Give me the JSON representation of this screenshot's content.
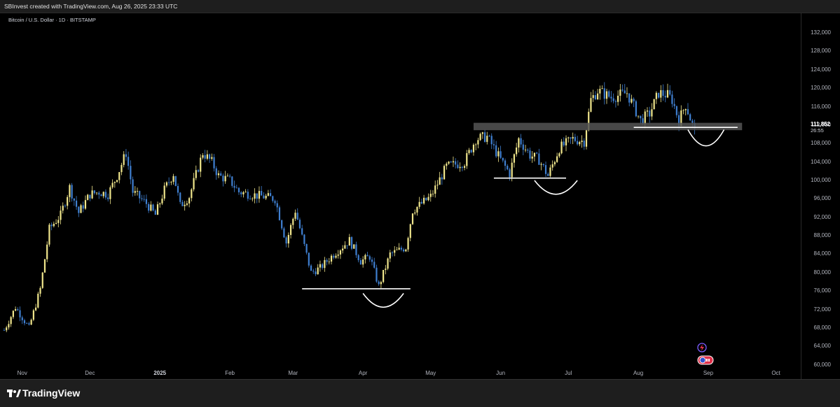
{
  "header": {
    "credit": "SBInvest created with TradingView.com, Aug 26, 2025 23:33 UTC"
  },
  "symbol_label": "Bitcoin / U.S. Dollar · 1D · BITSTAMP",
  "last_price": {
    "value": "111,852",
    "countdown": "26:55"
  },
  "footer": {
    "brand": "TradingView"
  },
  "colors": {
    "background": "#000000",
    "up_candle": "#f0e68c",
    "down_candle": "#3f7fd0",
    "annotation": "#ffffff",
    "resistance_band": "#555555"
  },
  "icons": [
    "lightning-alert-icon",
    "replay-toggle-icon"
  ],
  "chart_data": {
    "type": "candlestick",
    "title": "",
    "xlabel": "",
    "ylabel": "",
    "ylim": [
      59500,
      135500
    ],
    "y_ticks": [
      "60,000",
      "64,000",
      "68,000",
      "72,000",
      "76,000",
      "80,000",
      "84,000",
      "88,000",
      "92,000",
      "96,000",
      "100,000",
      "104,000",
      "108,000",
      "112,000",
      "116,000",
      "120,000",
      "124,000",
      "128,000",
      "132,000"
    ],
    "x_ticks": [
      {
        "label": "Nov",
        "date": "2024-11-01"
      },
      {
        "label": "Dec",
        "date": "2024-12-01"
      },
      {
        "label": "2025",
        "date": "2025-01-01",
        "bold": true
      },
      {
        "label": "Feb",
        "date": "2025-02-01"
      },
      {
        "label": "Mar",
        "date": "2025-03-01"
      },
      {
        "label": "Apr",
        "date": "2025-04-01"
      },
      {
        "label": "May",
        "date": "2025-05-01"
      },
      {
        "label": "Jun",
        "date": "2025-06-01"
      },
      {
        "label": "Jul",
        "date": "2025-07-01"
      },
      {
        "label": "Aug",
        "date": "2025-08-01"
      },
      {
        "label": "Sep",
        "date": "2025-09-01"
      },
      {
        "label": "Oct",
        "date": "2025-10-01"
      }
    ],
    "x_range": [
      "2024-10-24",
      "2025-10-12"
    ],
    "close_path": [
      [
        "2024-10-24",
        67500
      ],
      [
        "2024-10-29",
        72500
      ],
      [
        "2024-11-04",
        68000
      ],
      [
        "2024-11-09",
        76500
      ],
      [
        "2024-11-13",
        89500
      ],
      [
        "2024-11-18",
        92500
      ],
      [
        "2024-11-22",
        98500
      ],
      [
        "2024-11-26",
        93000
      ],
      [
        "2024-12-01",
        97000
      ],
      [
        "2024-12-05",
        97500
      ],
      [
        "2024-12-09",
        97000
      ],
      [
        "2024-12-13",
        101000
      ],
      [
        "2024-12-17",
        106000
      ],
      [
        "2024-12-20",
        97500
      ],
      [
        "2024-12-26",
        95000
      ],
      [
        "2024-12-30",
        92500
      ],
      [
        "2025-01-03",
        98000
      ],
      [
        "2025-01-07",
        101500
      ],
      [
        "2025-01-10",
        94500
      ],
      [
        "2025-01-14",
        96500
      ],
      [
        "2025-01-20",
        106000
      ],
      [
        "2025-01-24",
        104000
      ],
      [
        "2025-01-27",
        101000
      ],
      [
        "2025-02-01",
        100000
      ],
      [
        "2025-02-05",
        97500
      ],
      [
        "2025-02-10",
        97000
      ],
      [
        "2025-02-16",
        96500
      ],
      [
        "2025-02-21",
        96000
      ],
      [
        "2025-02-26",
        86500
      ],
      [
        "2025-03-02",
        93500
      ],
      [
        "2025-03-09",
        80000
      ],
      [
        "2025-03-13",
        81000
      ],
      [
        "2025-03-19",
        84000
      ],
      [
        "2025-03-26",
        87000
      ],
      [
        "2025-03-31",
        82500
      ],
      [
        "2025-04-04",
        83500
      ],
      [
        "2025-04-08",
        77000
      ],
      [
        "2025-04-13",
        84000
      ],
      [
        "2025-04-20",
        85500
      ],
      [
        "2025-04-23",
        93500
      ],
      [
        "2025-05-01",
        96500
      ],
      [
        "2025-05-08",
        103000
      ],
      [
        "2025-05-12",
        103500
      ],
      [
        "2025-05-16",
        104000
      ],
      [
        "2025-05-21",
        109000
      ],
      [
        "2025-05-26",
        109500
      ],
      [
        "2025-06-01",
        104500
      ],
      [
        "2025-06-05",
        101500
      ],
      [
        "2025-06-09",
        109000
      ],
      [
        "2025-06-14",
        105500
      ],
      [
        "2025-06-18",
        104500
      ],
      [
        "2025-06-22",
        101000
      ],
      [
        "2025-06-27",
        107000
      ],
      [
        "2025-07-03",
        109000
      ],
      [
        "2025-07-08",
        108500
      ],
      [
        "2025-07-11",
        117500
      ],
      [
        "2025-07-14",
        119500
      ],
      [
        "2025-07-20",
        118000
      ],
      [
        "2025-07-27",
        119000
      ],
      [
        "2025-08-02",
        113000
      ],
      [
        "2025-08-06",
        114500
      ],
      [
        "2025-08-10",
        119000
      ],
      [
        "2025-08-14",
        118500
      ],
      [
        "2025-08-16",
        117500
      ],
      [
        "2025-08-19",
        113000
      ],
      [
        "2025-08-22",
        116500
      ],
      [
        "2025-08-26",
        110500
      ]
    ],
    "annotations": [
      {
        "type": "support-line",
        "y": 76500,
        "x": [
          "2025-03-05",
          "2025-04-22"
        ]
      },
      {
        "type": "support-line",
        "y": 100500,
        "x": [
          "2025-05-29",
          "2025-06-30"
        ]
      },
      {
        "type": "support-line",
        "y": 111500,
        "x": [
          "2025-07-30",
          "2025-09-14"
        ]
      },
      {
        "type": "resistance-band",
        "y": [
          110900,
          112500
        ],
        "x": [
          "2025-05-20",
          "2025-09-16"
        ]
      },
      {
        "type": "rounded-bottom",
        "x": [
          "2025-04-01",
          "2025-04-19"
        ],
        "y_top": 75500,
        "y_bottom": 72500
      },
      {
        "type": "rounded-bottom",
        "x": [
          "2025-06-16",
          "2025-07-05"
        ],
        "y_top": 100000,
        "y_bottom": 97000
      },
      {
        "type": "rounded-bottom",
        "x": [
          "2025-08-23",
          "2025-09-08"
        ],
        "y_top": 111000,
        "y_bottom": 107500
      }
    ]
  }
}
